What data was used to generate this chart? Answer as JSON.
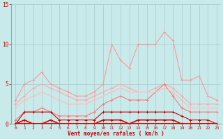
{
  "x": [
    0,
    1,
    2,
    3,
    4,
    5,
    6,
    7,
    8,
    9,
    10,
    11,
    12,
    13,
    14,
    15,
    16,
    17,
    18,
    19,
    20,
    21,
    22,
    23
  ],
  "series": [
    {
      "name": "rafales_max",
      "color": "#ff9999",
      "alpha": 1.0,
      "linewidth": 0.8,
      "markersize": 2.5,
      "values": [
        3.0,
        5.0,
        5.5,
        6.5,
        5.0,
        4.5,
        4.0,
        3.5,
        3.5,
        4.0,
        5.0,
        10.0,
        8.0,
        7.0,
        10.0,
        10.0,
        10.0,
        11.5,
        10.5,
        5.5,
        5.5,
        6.0,
        3.5,
        3.0
      ]
    },
    {
      "name": "vent_moyen_max",
      "color": "#ffaaaa",
      "alpha": 1.0,
      "linewidth": 0.8,
      "markersize": 2.5,
      "values": [
        2.5,
        3.5,
        4.5,
        5.0,
        4.5,
        4.0,
        3.5,
        3.0,
        3.0,
        3.5,
        4.0,
        4.5,
        5.0,
        4.5,
        4.0,
        4.0,
        4.5,
        5.0,
        4.5,
        3.5,
        2.5,
        2.5,
        2.5,
        2.5
      ]
    },
    {
      "name": "rafales_mean",
      "color": "#ff7777",
      "alpha": 1.0,
      "linewidth": 0.8,
      "markersize": 2.5,
      "values": [
        0.5,
        1.5,
        1.5,
        2.0,
        1.5,
        1.0,
        1.0,
        1.0,
        1.0,
        1.5,
        2.5,
        3.0,
        3.5,
        3.0,
        3.0,
        3.0,
        4.0,
        5.0,
        3.5,
        2.0,
        1.5,
        1.5,
        1.5,
        1.5
      ]
    },
    {
      "name": "vent_moyen_mean",
      "color": "#ffbbbb",
      "alpha": 1.0,
      "linewidth": 0.8,
      "markersize": 2.5,
      "values": [
        2.0,
        3.0,
        3.5,
        4.0,
        3.5,
        3.0,
        2.5,
        2.5,
        2.5,
        3.0,
        3.5,
        4.0,
        4.5,
        4.0,
        4.0,
        4.0,
        4.0,
        4.5,
        4.0,
        3.0,
        2.0,
        2.0,
        2.0,
        2.0
      ]
    },
    {
      "name": "vent_moyen_min",
      "color": "#cc0000",
      "alpha": 1.0,
      "linewidth": 0.8,
      "markersize": 2.5,
      "values": [
        0.0,
        1.5,
        1.5,
        1.5,
        1.5,
        0.5,
        0.5,
        0.5,
        0.5,
        0.5,
        1.5,
        1.5,
        1.5,
        1.5,
        1.5,
        1.5,
        1.5,
        1.5,
        1.5,
        1.0,
        0.5,
        0.5,
        0.5,
        0.0
      ]
    },
    {
      "name": "rafales_min_thick",
      "color": "#cc0000",
      "alpha": 1.0,
      "linewidth": 1.2,
      "markersize": 2.5,
      "values": [
        0.0,
        0.5,
        0.0,
        0.0,
        0.5,
        0.0,
        0.0,
        0.0,
        0.0,
        0.0,
        0.5,
        0.5,
        0.5,
        0.0,
        0.5,
        0.5,
        0.5,
        0.5,
        0.5,
        0.0,
        0.0,
        0.0,
        0.0,
        0.0
      ]
    },
    {
      "name": "zero_line",
      "color": "#cc0000",
      "alpha": 1.0,
      "linewidth": 1.5,
      "markersize": 2.0,
      "values": [
        0.0,
        0.0,
        0.0,
        0.0,
        0.0,
        0.0,
        0.0,
        0.0,
        0.0,
        0.0,
        0.0,
        0.0,
        0.0,
        0.0,
        0.0,
        0.0,
        0.0,
        0.0,
        0.0,
        0.0,
        0.0,
        0.0,
        0.0,
        0.0
      ]
    }
  ],
  "xlabel": "Vent moyen/en rafales ( km/h )",
  "xlim_min": -0.5,
  "xlim_max": 23.5,
  "ylim": [
    0,
    15
  ],
  "yticks": [
    0,
    5,
    10,
    15
  ],
  "xticks": [
    0,
    1,
    2,
    3,
    4,
    5,
    6,
    7,
    8,
    9,
    10,
    11,
    12,
    13,
    14,
    15,
    16,
    17,
    18,
    19,
    20,
    21,
    22,
    23
  ],
  "background_color": "#c8eaea",
  "grid_color": "#aacaca",
  "tick_color": "#cc0000",
  "label_color": "#cc0000",
  "spine_color": "#888888"
}
